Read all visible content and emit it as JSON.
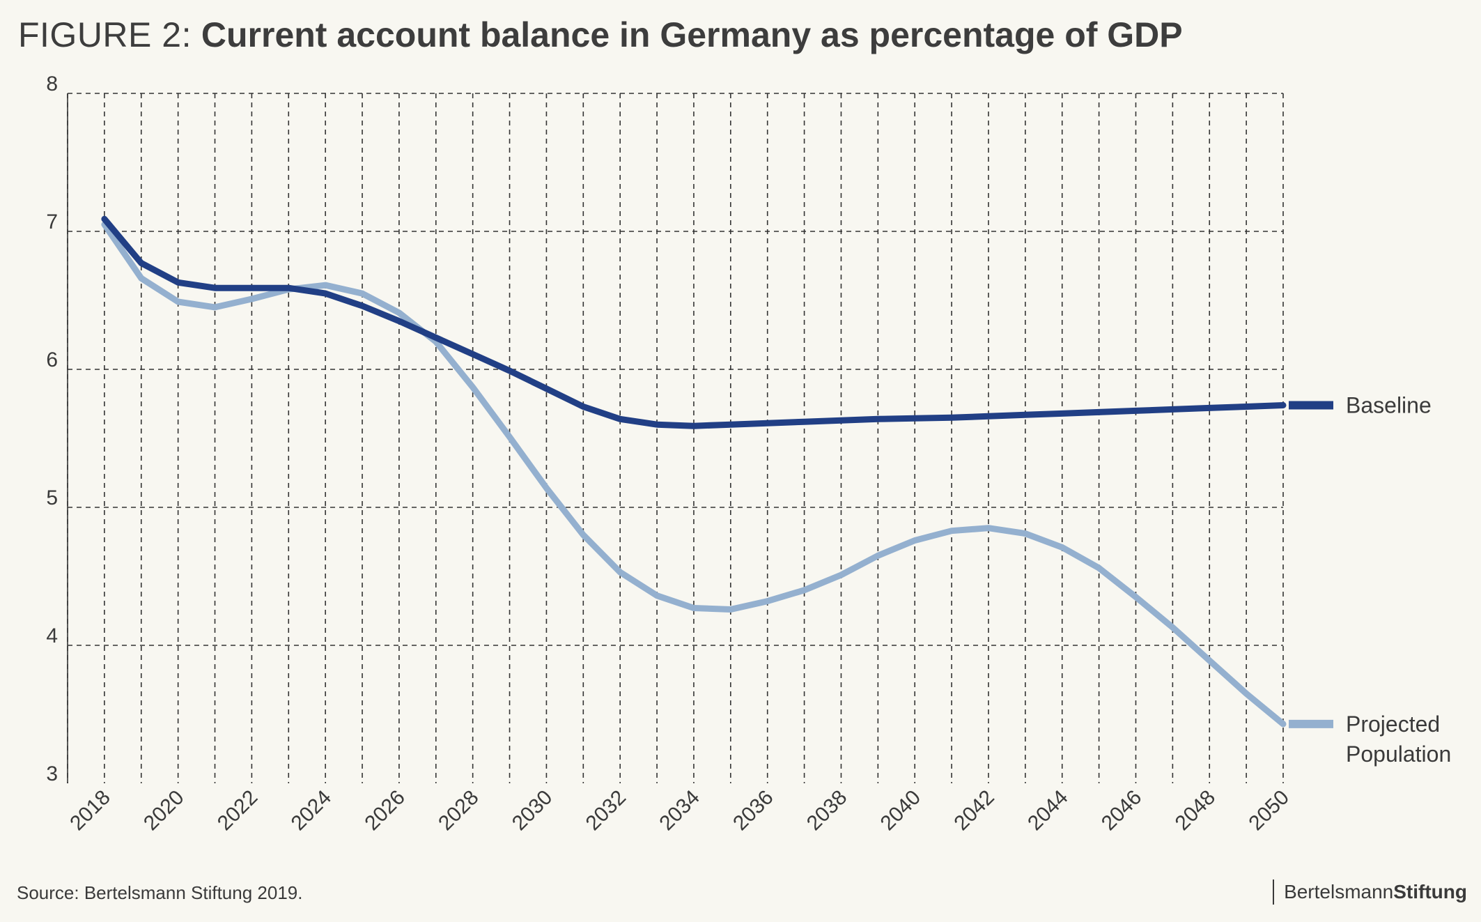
{
  "figure_label": "FIGURE 2:",
  "title": "Current account balance in Germany as percentage of GDP",
  "source": "Source: Bertelsmann Stiftung 2019.",
  "logo": {
    "regular": "Bertelsmann",
    "bold": "Stiftung"
  },
  "colors": {
    "baseline": "#213f85",
    "projected": "#94b0cf",
    "grid": "#333333",
    "background": "#f8f7f1"
  },
  "chart_data": {
    "type": "line",
    "xlim": [
      2017,
      2050
    ],
    "ylim": [
      3,
      8
    ],
    "yticks": [
      3,
      4,
      5,
      6,
      7,
      8
    ],
    "xticks": [
      2018,
      2020,
      2022,
      2024,
      2026,
      2028,
      2030,
      2032,
      2034,
      2036,
      2038,
      2040,
      2042,
      2044,
      2046,
      2048,
      2050
    ],
    "grid": true,
    "legend_placement": "right, at line ends",
    "x": [
      2018,
      2019,
      2020,
      2021,
      2022,
      2023,
      2024,
      2025,
      2026,
      2027,
      2028,
      2029,
      2030,
      2031,
      2032,
      2033,
      2034,
      2035,
      2036,
      2037,
      2038,
      2039,
      2040,
      2041,
      2042,
      2043,
      2044,
      2045,
      2046,
      2047,
      2048,
      2049,
      2050
    ],
    "series": [
      {
        "name": "Baseline",
        "color": "#213f85",
        "values": [
          7.09,
          6.77,
          6.63,
          6.59,
          6.59,
          6.59,
          6.55,
          6.46,
          6.35,
          6.23,
          6.11,
          5.99,
          5.86,
          5.73,
          5.64,
          5.6,
          5.59,
          5.6,
          5.61,
          5.62,
          5.63,
          5.64,
          5.645,
          5.65,
          5.66,
          5.67,
          5.68,
          5.69,
          5.7,
          5.71,
          5.72,
          5.73,
          5.74
        ]
      },
      {
        "name": "Projected Population",
        "color": "#94b0cf",
        "values": [
          7.05,
          6.66,
          6.49,
          6.45,
          6.51,
          6.58,
          6.61,
          6.55,
          6.41,
          6.2,
          5.87,
          5.51,
          5.14,
          4.8,
          4.53,
          4.36,
          4.27,
          4.26,
          4.32,
          4.4,
          4.51,
          4.65,
          4.76,
          4.83,
          4.85,
          4.81,
          4.71,
          4.56,
          4.35,
          4.13,
          3.89,
          3.65,
          3.43
        ]
      }
    ]
  }
}
